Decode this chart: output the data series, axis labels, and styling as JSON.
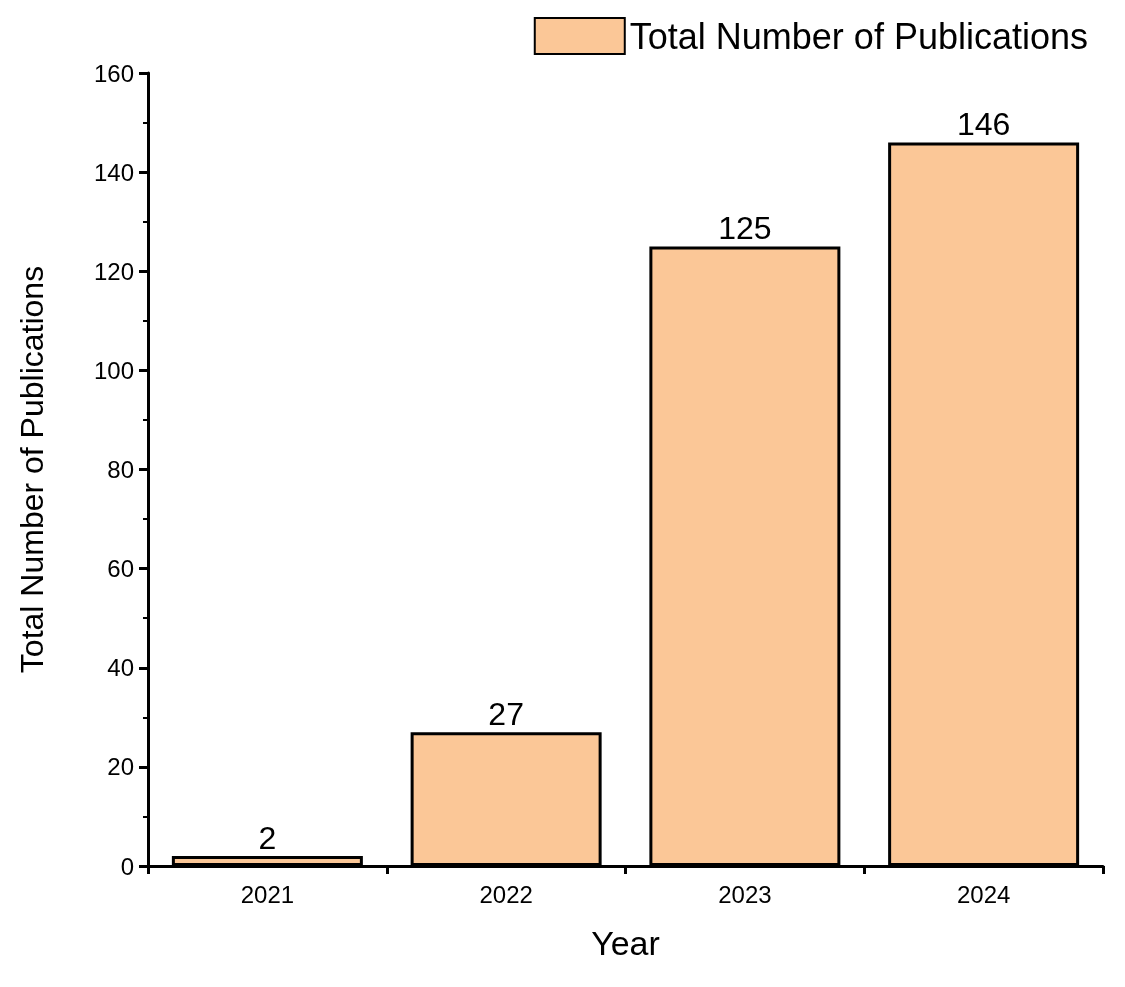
{
  "chart_data": {
    "type": "bar",
    "xlabel": "Year",
    "ylabel": "Total Number of Publications",
    "categories": [
      "2021",
      "2022",
      "2023",
      "2024"
    ],
    "series": [
      {
        "name": "Total Number of Publications",
        "color": "#fbc797",
        "values": [
          2,
          27,
          125,
          146
        ]
      }
    ],
    "ylim": [
      0,
      160
    ],
    "yticks": [
      0,
      20,
      40,
      60,
      80,
      100,
      120,
      140,
      160
    ],
    "grid": false,
    "legend": "top right",
    "data_labels": true
  }
}
